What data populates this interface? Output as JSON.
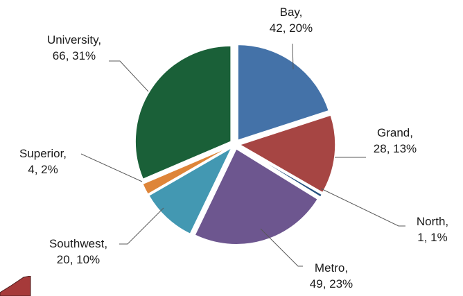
{
  "chart_data": {
    "type": "pie",
    "title": "",
    "slices": [
      {
        "name": "Bay",
        "value": 42,
        "percent": "20%",
        "color": "#4472A8"
      },
      {
        "name": "Grand",
        "value": 28,
        "percent": "13%",
        "color": "#A64543"
      },
      {
        "name": "North",
        "value": 1,
        "percent": "1%",
        "color": "#24507E"
      },
      {
        "name": "Metro",
        "value": 49,
        "percent": "23%",
        "color": "#6D568F"
      },
      {
        "name": "Southwest",
        "value": 20,
        "percent": "10%",
        "color": "#4398B2"
      },
      {
        "name": "Superior",
        "value": 4,
        "percent": "2%",
        "color": "#DE8539"
      },
      {
        "name": "University",
        "value": 66,
        "percent": "31%",
        "color": "#1A6038"
      }
    ],
    "labels": {
      "bay": {
        "line1": "Bay,",
        "line2": "42, 20%"
      },
      "grand": {
        "line1": "Grand,",
        "line2": "28, 13%"
      },
      "north": {
        "line1": "North,",
        "line2": "1, 1%"
      },
      "metro": {
        "line1": "Metro,",
        "line2": "49, 23%"
      },
      "southwest": {
        "line1": "Southwest,",
        "line2": "20, 10%"
      },
      "superior": {
        "line1": "Superior,",
        "line2": "4, 2%"
      },
      "university": {
        "line1": "University,",
        "line2": "66, 31%"
      }
    },
    "exploded": true,
    "legend": "none",
    "label_style": "category, value, percent with leader lines"
  },
  "decoration": {
    "corner_color": "#A63A3A"
  }
}
